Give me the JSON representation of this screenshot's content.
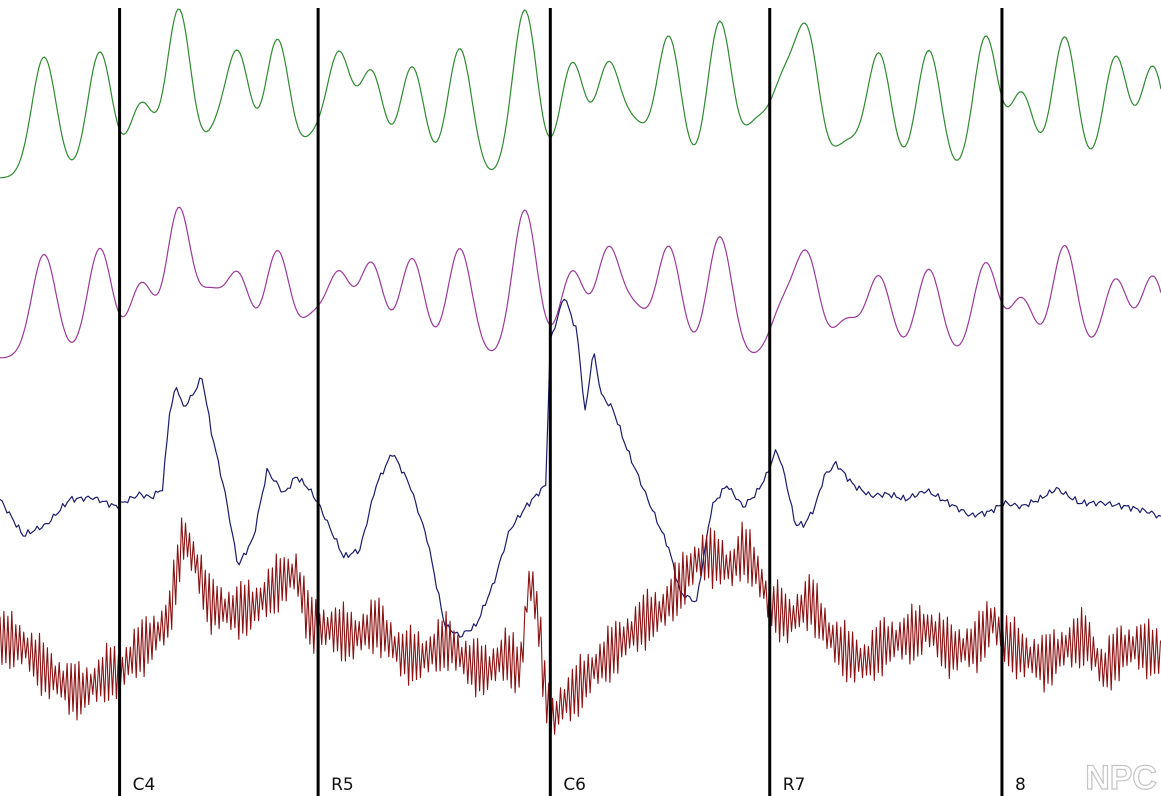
{
  "watermark": "NPC",
  "chart_data": {
    "type": "line",
    "title": "",
    "xlabel": "",
    "ylabel": "",
    "grid": false,
    "x_range": [
      0,
      100
    ],
    "markers": [
      {
        "label": "C4",
        "x": 10.3
      },
      {
        "label": "R5",
        "x": 27.4
      },
      {
        "label": "C6",
        "x": 47.4
      },
      {
        "label": "R7",
        "x": 66.3
      },
      {
        "label": "8",
        "x": 86.3
      }
    ],
    "series": [
      {
        "color": "#2e8b2e",
        "style": "peaks",
        "baseline": 0.15,
        "peaks": [
          {
            "x": 3.8,
            "amp": 0.72
          },
          {
            "x": 8.6,
            "amp": 0.75
          },
          {
            "x": 12.2,
            "amp": 0.44
          },
          {
            "x": 15.4,
            "amp": 1.0
          },
          {
            "x": 18.5,
            "amp": 0.22
          },
          {
            "x": 20.5,
            "amp": 0.72
          },
          {
            "x": 23.9,
            "amp": 0.82
          },
          {
            "x": 26.9,
            "amp": 0.2
          },
          {
            "x": 29.2,
            "amp": 0.72
          },
          {
            "x": 32.0,
            "amp": 0.62
          },
          {
            "x": 35.5,
            "amp": 0.66
          },
          {
            "x": 39.6,
            "amp": 0.77
          },
          {
            "x": 45.2,
            "amp": 1.0
          },
          {
            "x": 49.3,
            "amp": 0.68
          },
          {
            "x": 52.4,
            "amp": 0.66
          },
          {
            "x": 54.7,
            "amp": 0.28
          },
          {
            "x": 57.6,
            "amp": 0.84
          },
          {
            "x": 62.0,
            "amp": 0.93
          },
          {
            "x": 65.1,
            "amp": 0.3
          },
          {
            "x": 67.4,
            "amp": 0.5
          },
          {
            "x": 69.5,
            "amp": 0.84
          },
          {
            "x": 72.9,
            "amp": 0.2
          },
          {
            "x": 75.7,
            "amp": 0.74
          },
          {
            "x": 80.0,
            "amp": 0.76
          },
          {
            "x": 84.9,
            "amp": 0.84
          },
          {
            "x": 88.0,
            "amp": 0.5
          },
          {
            "x": 91.7,
            "amp": 0.84
          },
          {
            "x": 96.1,
            "amp": 0.72
          },
          {
            "x": 99.3,
            "amp": 0.66
          }
        ]
      },
      {
        "color": "#9b3a9b",
        "style": "peaks",
        "baseline": 0.15,
        "peaks": [
          {
            "x": 3.8,
            "amp": 0.7
          },
          {
            "x": 8.6,
            "amp": 0.74
          },
          {
            "x": 12.2,
            "amp": 0.5
          },
          {
            "x": 15.4,
            "amp": 1.0
          },
          {
            "x": 18.1,
            "amp": 0.4
          },
          {
            "x": 20.5,
            "amp": 0.55
          },
          {
            "x": 23.9,
            "amp": 0.72
          },
          {
            "x": 26.9,
            "amp": 0.25
          },
          {
            "x": 29.2,
            "amp": 0.55
          },
          {
            "x": 32.0,
            "amp": 0.63
          },
          {
            "x": 35.5,
            "amp": 0.67
          },
          {
            "x": 39.6,
            "amp": 0.74
          },
          {
            "x": 45.2,
            "amp": 1.0
          },
          {
            "x": 49.3,
            "amp": 0.58
          },
          {
            "x": 52.4,
            "amp": 0.72
          },
          {
            "x": 54.7,
            "amp": 0.3
          },
          {
            "x": 57.6,
            "amp": 0.75
          },
          {
            "x": 62.0,
            "amp": 0.82
          },
          {
            "x": 67.4,
            "amp": 0.32
          },
          {
            "x": 69.5,
            "amp": 0.68
          },
          {
            "x": 72.9,
            "amp": 0.25
          },
          {
            "x": 75.7,
            "amp": 0.55
          },
          {
            "x": 80.0,
            "amp": 0.6
          },
          {
            "x": 84.9,
            "amp": 0.64
          },
          {
            "x": 88.0,
            "amp": 0.4
          },
          {
            "x": 91.7,
            "amp": 0.76
          },
          {
            "x": 96.1,
            "amp": 0.53
          },
          {
            "x": 99.3,
            "amp": 0.55
          }
        ]
      },
      {
        "color": "#1c1c6e",
        "style": "path",
        "x": [
          0,
          2,
          4,
          6,
          8,
          10,
          12,
          13,
          14,
          14.6,
          15.2,
          15.8,
          16.6,
          17.4,
          18.2,
          19.4,
          20.5,
          21.8,
          23.0,
          24.5,
          25.5,
          26.6,
          27.4,
          28.5,
          29.6,
          31.0,
          32.4,
          33.8,
          35.3,
          36.8,
          38.3,
          39.6,
          41.0,
          42.5,
          43.9,
          45.3,
          46.3,
          47.0,
          47.4,
          48.6,
          49.7,
          50.4,
          51.1,
          51.8,
          52.8,
          54.0,
          55.6,
          56.6,
          57.6,
          58.6,
          60.0,
          61.3,
          62.6,
          64.0,
          65.1,
          66.0,
          66.9,
          67.6,
          68.5,
          69.3,
          70.2,
          71.0,
          72.0,
          73.5,
          75.0,
          76.5,
          78.0,
          79.8,
          81.7,
          83.6,
          85.2,
          86.5,
          88.0,
          89.5,
          91.0,
          93.0,
          95.0,
          97.0,
          99.0,
          100
        ],
        "values": [
          0.42,
          0.22,
          0.28,
          0.42,
          0.43,
          0.38,
          0.45,
          0.43,
          0.48,
          0.9,
          1.05,
          0.93,
          1.0,
          1.1,
          0.8,
          0.45,
          0.05,
          0.2,
          0.58,
          0.45,
          0.55,
          0.48,
          0.4,
          0.25,
          0.1,
          0.14,
          0.5,
          0.68,
          0.5,
          0.2,
          -0.28,
          -0.34,
          -0.28,
          -0.05,
          0.25,
          0.38,
          0.45,
          0.5,
          1.3,
          1.55,
          1.35,
          0.9,
          1.25,
          1.0,
          0.92,
          0.7,
          0.45,
          0.3,
          0.15,
          -0.1,
          -0.15,
          0.38,
          0.5,
          0.38,
          0.45,
          0.55,
          0.7,
          0.55,
          0.28,
          0.28,
          0.38,
          0.55,
          0.62,
          0.5,
          0.44,
          0.45,
          0.42,
          0.47,
          0.4,
          0.33,
          0.35,
          0.4,
          0.38,
          0.42,
          0.48,
          0.4,
          0.4,
          0.38,
          0.35,
          0.32
        ]
      },
      {
        "color": "#8b1212",
        "style": "oscillation",
        "oscillation_amplitude": 0.16,
        "cycle_width": 0.34,
        "x": [
          0,
          2,
          4,
          6,
          7,
          8,
          9.5,
          10.3,
          11.5,
          13.0,
          14.5,
          15.8,
          16.8,
          18.0,
          20.0,
          22.0,
          24.0,
          25.5,
          26.6,
          27.4,
          28.5,
          30.5,
          32.5,
          34.5,
          36.5,
          38.5,
          40.2,
          42.0,
          43.5,
          44.8,
          45.6,
          46.3,
          47.0,
          47.6,
          48.3,
          49.5,
          51.0,
          52.5,
          54.0,
          55.5,
          57.0,
          58.5,
          60.0,
          61.0,
          62.0,
          63.0,
          64.0,
          65.0,
          66.3,
          68.0,
          69.8,
          71.5,
          73.0,
          74.5,
          76.0,
          78.0,
          80.0,
          82.0,
          84.0,
          85.5,
          86.3,
          88.0,
          90.0,
          92.0,
          93.5,
          95.0,
          96.5,
          98.0,
          100
        ],
        "values": [
          0.4,
          0.35,
          0.2,
          0.1,
          0.08,
          0.12,
          0.2,
          0.18,
          0.3,
          0.38,
          0.5,
          1.0,
          0.85,
          0.6,
          0.55,
          0.58,
          0.72,
          0.78,
          0.5,
          0.45,
          0.45,
          0.4,
          0.48,
          0.3,
          0.28,
          0.38,
          0.25,
          0.2,
          0.3,
          0.2,
          0.75,
          0.55,
          0.05,
          -0.1,
          0.0,
          0.08,
          0.2,
          0.3,
          0.4,
          0.5,
          0.55,
          0.7,
          0.85,
          0.88,
          0.85,
          0.8,
          0.92,
          0.82,
          0.6,
          0.5,
          0.62,
          0.4,
          0.3,
          0.25,
          0.35,
          0.4,
          0.45,
          0.32,
          0.35,
          0.5,
          0.4,
          0.3,
          0.25,
          0.35,
          0.4,
          0.2,
          0.32,
          0.35,
          0.3
        ]
      }
    ]
  }
}
